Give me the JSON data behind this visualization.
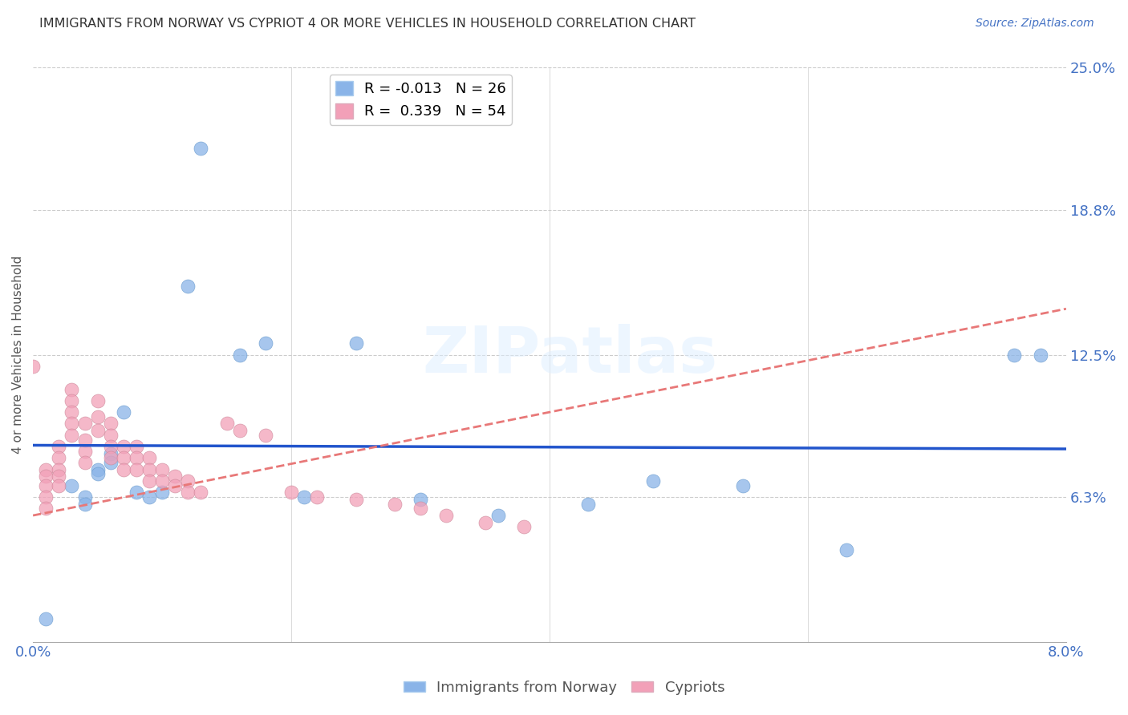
{
  "title": "IMMIGRANTS FROM NORWAY VS CYPRIOT 4 OR MORE VEHICLES IN HOUSEHOLD CORRELATION CHART",
  "source": "Source: ZipAtlas.com",
  "ylabel": "4 or more Vehicles in Household",
  "legend_label1": "Immigrants from Norway",
  "legend_label2": "Cypriots",
  "legend_R1": "R = -0.013",
  "legend_N1": "N = 26",
  "legend_R2": "R =  0.339",
  "legend_N2": "N = 54",
  "xlim": [
    0.0,
    0.08
  ],
  "ylim": [
    0.0,
    0.25
  ],
  "color_norway": "#8AB4E8",
  "color_cypriot": "#F2A0B8",
  "color_norway_line": "#2255CC",
  "color_cypriot_line": "#E87878",
  "watermark": "ZIPatlas",
  "norway_x": [
    0.001,
    0.003,
    0.004,
    0.004,
    0.005,
    0.005,
    0.006,
    0.006,
    0.007,
    0.008,
    0.009,
    0.01,
    0.012,
    0.013,
    0.016,
    0.018,
    0.021,
    0.025,
    0.03,
    0.036,
    0.043,
    0.048,
    0.055,
    0.063,
    0.076,
    0.078
  ],
  "norway_y": [
    0.01,
    0.068,
    0.063,
    0.06,
    0.075,
    0.073,
    0.082,
    0.078,
    0.1,
    0.065,
    0.063,
    0.065,
    0.155,
    0.215,
    0.125,
    0.13,
    0.063,
    0.13,
    0.062,
    0.055,
    0.06,
    0.07,
    0.068,
    0.04,
    0.125,
    0.125
  ],
  "cypriot_x": [
    0.0,
    0.001,
    0.001,
    0.001,
    0.001,
    0.001,
    0.002,
    0.002,
    0.002,
    0.002,
    0.002,
    0.003,
    0.003,
    0.003,
    0.003,
    0.003,
    0.004,
    0.004,
    0.004,
    0.004,
    0.005,
    0.005,
    0.005,
    0.006,
    0.006,
    0.006,
    0.006,
    0.007,
    0.007,
    0.007,
    0.008,
    0.008,
    0.008,
    0.009,
    0.009,
    0.009,
    0.01,
    0.01,
    0.011,
    0.011,
    0.012,
    0.012,
    0.013,
    0.015,
    0.016,
    0.018,
    0.02,
    0.022,
    0.025,
    0.028,
    0.03,
    0.032,
    0.035,
    0.038
  ],
  "cypriot_y": [
    0.12,
    0.075,
    0.072,
    0.068,
    0.063,
    0.058,
    0.085,
    0.08,
    0.075,
    0.072,
    0.068,
    0.11,
    0.105,
    0.1,
    0.095,
    0.09,
    0.095,
    0.088,
    0.083,
    0.078,
    0.105,
    0.098,
    0.092,
    0.095,
    0.09,
    0.085,
    0.08,
    0.085,
    0.08,
    0.075,
    0.085,
    0.08,
    0.075,
    0.08,
    0.075,
    0.07,
    0.075,
    0.07,
    0.072,
    0.068,
    0.07,
    0.065,
    0.065,
    0.095,
    0.092,
    0.09,
    0.065,
    0.063,
    0.062,
    0.06,
    0.058,
    0.055,
    0.052,
    0.05
  ]
}
